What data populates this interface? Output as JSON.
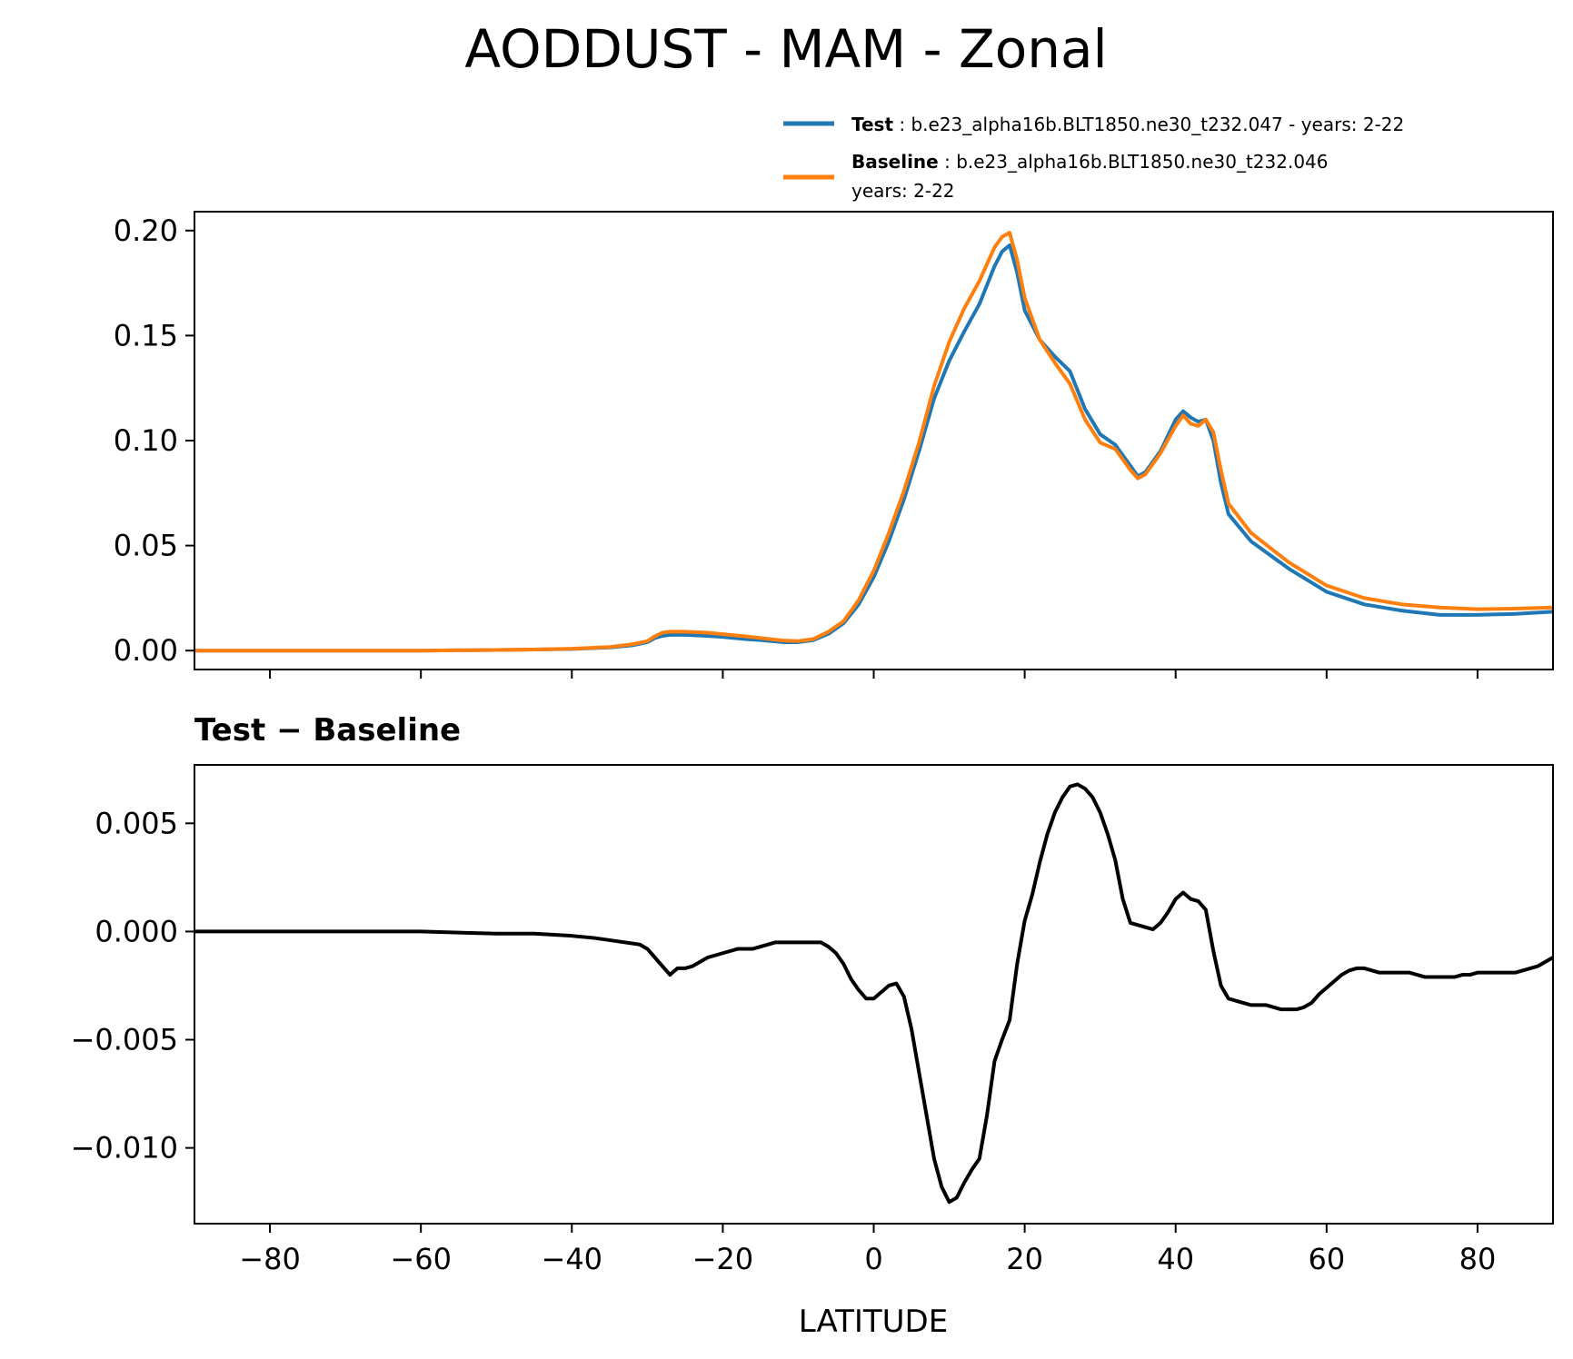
{
  "figure": {
    "title": "AODDUST - MAM - Zonal"
  },
  "legend": {
    "entries": [
      {
        "label_bold": "Test",
        "label_text": ": b.e23_alpha16b.BLT1850.ne30_t232.047 - years: 2-22",
        "label_line2": "",
        "color": "#1f77b4"
      },
      {
        "label_bold": "Baseline",
        "label_text": ": b.e23_alpha16b.BLT1850.ne30_t232.046",
        "label_line2": "years: 2-22",
        "color": "#ff7f0e"
      }
    ]
  },
  "chart_data": [
    {
      "type": "line",
      "title": "",
      "xlabel": "",
      "ylabel": "",
      "xlim": [
        -90,
        90
      ],
      "ylim": [
        -0.009,
        0.209
      ],
      "yticks": [
        0.0,
        0.05,
        0.1,
        0.15,
        0.2
      ],
      "ytick_labels": [
        "0.00",
        "0.05",
        "0.10",
        "0.15",
        "0.20"
      ],
      "xticks": [
        -80,
        -60,
        -40,
        -20,
        0,
        20,
        40,
        60,
        80
      ],
      "show_xtick_labels": false,
      "grid": false,
      "legend_position": "above-right",
      "series": [
        {
          "name": "Test",
          "color": "#1f77b4",
          "x": [
            -90,
            -80,
            -70,
            -60,
            -50,
            -45,
            -40,
            -35,
            -32,
            -30,
            -29,
            -28,
            -27,
            -25,
            -22,
            -20,
            -17,
            -15,
            -12,
            -10,
            -8,
            -6,
            -4,
            -2,
            0,
            2,
            4,
            6,
            8,
            10,
            12,
            14,
            16,
            17,
            18,
            19,
            20,
            22,
            24,
            26,
            28,
            30,
            32,
            34,
            35,
            36,
            38,
            40,
            41,
            42,
            43,
            44,
            45,
            46,
            47,
            50,
            55,
            60,
            65,
            70,
            75,
            80,
            85,
            90
          ],
          "y": [
            0.0,
            0.0,
            0.0,
            0.0,
            0.0003,
            0.0005,
            0.0008,
            0.0015,
            0.0025,
            0.004,
            0.006,
            0.007,
            0.0075,
            0.0075,
            0.007,
            0.0065,
            0.0055,
            0.005,
            0.004,
            0.004,
            0.005,
            0.008,
            0.013,
            0.022,
            0.035,
            0.052,
            0.072,
            0.095,
            0.12,
            0.138,
            0.152,
            0.165,
            0.183,
            0.19,
            0.193,
            0.18,
            0.162,
            0.148,
            0.14,
            0.133,
            0.115,
            0.103,
            0.098,
            0.088,
            0.083,
            0.085,
            0.095,
            0.11,
            0.114,
            0.111,
            0.109,
            0.11,
            0.1,
            0.08,
            0.065,
            0.052,
            0.039,
            0.028,
            0.022,
            0.019,
            0.017,
            0.017,
            0.0175,
            0.0185
          ]
        },
        {
          "name": "Baseline",
          "color": "#ff7f0e",
          "x": [
            -90,
            -80,
            -70,
            -60,
            -50,
            -45,
            -40,
            -35,
            -32,
            -30,
            -29,
            -28,
            -27,
            -25,
            -22,
            -20,
            -17,
            -15,
            -12,
            -10,
            -8,
            -6,
            -4,
            -2,
            0,
            2,
            4,
            6,
            8,
            10,
            12,
            14,
            16,
            17,
            18,
            19,
            20,
            22,
            24,
            26,
            28,
            30,
            32,
            34,
            35,
            36,
            38,
            40,
            41,
            42,
            43,
            44,
            45,
            46,
            47,
            50,
            55,
            60,
            65,
            70,
            75,
            80,
            85,
            90
          ],
          "y": [
            0.0,
            0.0,
            0.0,
            0.0,
            0.0003,
            0.0005,
            0.0009,
            0.0017,
            0.003,
            0.0045,
            0.0068,
            0.0085,
            0.009,
            0.009,
            0.0085,
            0.0078,
            0.0068,
            0.006,
            0.0048,
            0.0045,
            0.0055,
            0.009,
            0.014,
            0.024,
            0.038,
            0.056,
            0.076,
            0.099,
            0.126,
            0.147,
            0.163,
            0.176,
            0.192,
            0.197,
            0.199,
            0.186,
            0.168,
            0.148,
            0.137,
            0.127,
            0.11,
            0.099,
            0.096,
            0.086,
            0.082,
            0.084,
            0.094,
            0.107,
            0.112,
            0.108,
            0.107,
            0.11,
            0.104,
            0.086,
            0.07,
            0.056,
            0.042,
            0.031,
            0.025,
            0.022,
            0.0205,
            0.0197,
            0.02,
            0.0205
          ]
        }
      ]
    },
    {
      "type": "line",
      "title": "Test − Baseline",
      "xlabel": "LATITUDE",
      "ylabel": "",
      "xlim": [
        -90,
        90
      ],
      "ylim": [
        -0.0135,
        0.0077
      ],
      "yticks": [
        -0.01,
        -0.005,
        0.0,
        0.005
      ],
      "ytick_labels": [
        "−0.010",
        "−0.005",
        "0.000",
        "0.005"
      ],
      "xticks": [
        -80,
        -60,
        -40,
        -20,
        0,
        20,
        40,
        60,
        80
      ],
      "xtick_labels": [
        "−80",
        "−60",
        "−40",
        "−20",
        "0",
        "20",
        "40",
        "60",
        "80"
      ],
      "grid": false,
      "series": [
        {
          "name": "",
          "color": "#000000",
          "x": [
            -90,
            -70,
            -60,
            -50,
            -45,
            -40,
            -37,
            -35,
            -33,
            -31,
            -30,
            -29,
            -28,
            -27,
            -26,
            -25,
            -24,
            -23,
            -22,
            -20,
            -19,
            -18,
            -17,
            -16,
            -15,
            -14,
            -13,
            -12,
            -11,
            -10,
            -9,
            -8,
            -7,
            -6,
            -5,
            -4,
            -3,
            -2,
            -1,
            0,
            1,
            2,
            3,
            4,
            5,
            6,
            7,
            8,
            9,
            10,
            11,
            12,
            13,
            14,
            15,
            16,
            17,
            18,
            19,
            20,
            21,
            22,
            23,
            24,
            25,
            26,
            27,
            28,
            29,
            30,
            31,
            32,
            33,
            34,
            35,
            36,
            37,
            38,
            39,
            40,
            41,
            42,
            43,
            44,
            45,
            46,
            47,
            48,
            49,
            50,
            51,
            52,
            53,
            54,
            55,
            56,
            57,
            58,
            59,
            60,
            61,
            62,
            63,
            64,
            65,
            66,
            67,
            68,
            69,
            70,
            71,
            72,
            73,
            74,
            75,
            76,
            77,
            78,
            79,
            80,
            81,
            82,
            83,
            84,
            85,
            86,
            87,
            88,
            89,
            90
          ],
          "y": [
            0.0,
            0.0,
            0.0,
            -0.0001,
            -0.0001,
            -0.0002,
            -0.0003,
            -0.0004,
            -0.0005,
            -0.0006,
            -0.0008,
            -0.0012,
            -0.0016,
            -0.002,
            -0.0017,
            -0.0017,
            -0.0016,
            -0.0014,
            -0.0012,
            -0.001,
            -0.0009,
            -0.0008,
            -0.0008,
            -0.0008,
            -0.0007,
            -0.0006,
            -0.0005,
            -0.0005,
            -0.0005,
            -0.0005,
            -0.0005,
            -0.0005,
            -0.0005,
            -0.0007,
            -0.001,
            -0.0015,
            -0.0022,
            -0.0027,
            -0.0031,
            -0.0031,
            -0.0028,
            -0.0025,
            -0.0024,
            -0.003,
            -0.0045,
            -0.0065,
            -0.0085,
            -0.0105,
            -0.0118,
            -0.0125,
            -0.0123,
            -0.0116,
            -0.011,
            -0.0105,
            -0.0085,
            -0.006,
            -0.005,
            -0.0041,
            -0.0015,
            0.0005,
            0.0017,
            0.0032,
            0.0045,
            0.0055,
            0.0062,
            0.0067,
            0.0068,
            0.0066,
            0.0062,
            0.0055,
            0.0045,
            0.0033,
            0.0015,
            0.0004,
            0.0003,
            0.0002,
            0.0001,
            0.0004,
            0.0009,
            0.0015,
            0.0018,
            0.0015,
            0.0014,
            0.001,
            -0.0009,
            -0.0025,
            -0.0031,
            -0.0032,
            -0.0033,
            -0.0034,
            -0.0034,
            -0.0034,
            -0.0035,
            -0.0036,
            -0.0036,
            -0.0036,
            -0.0035,
            -0.0033,
            -0.0029,
            -0.0026,
            -0.0023,
            -0.002,
            -0.0018,
            -0.0017,
            -0.0017,
            -0.0018,
            -0.0019,
            -0.0019,
            -0.0019,
            -0.0019,
            -0.0019,
            -0.002,
            -0.0021,
            -0.0021,
            -0.0021,
            -0.0021,
            -0.0021,
            -0.002,
            -0.002,
            -0.0019,
            -0.0019,
            -0.0019,
            -0.0019,
            -0.0019,
            -0.0019,
            -0.0018,
            -0.0017,
            -0.0016,
            -0.0014,
            -0.0012
          ]
        }
      ]
    }
  ]
}
